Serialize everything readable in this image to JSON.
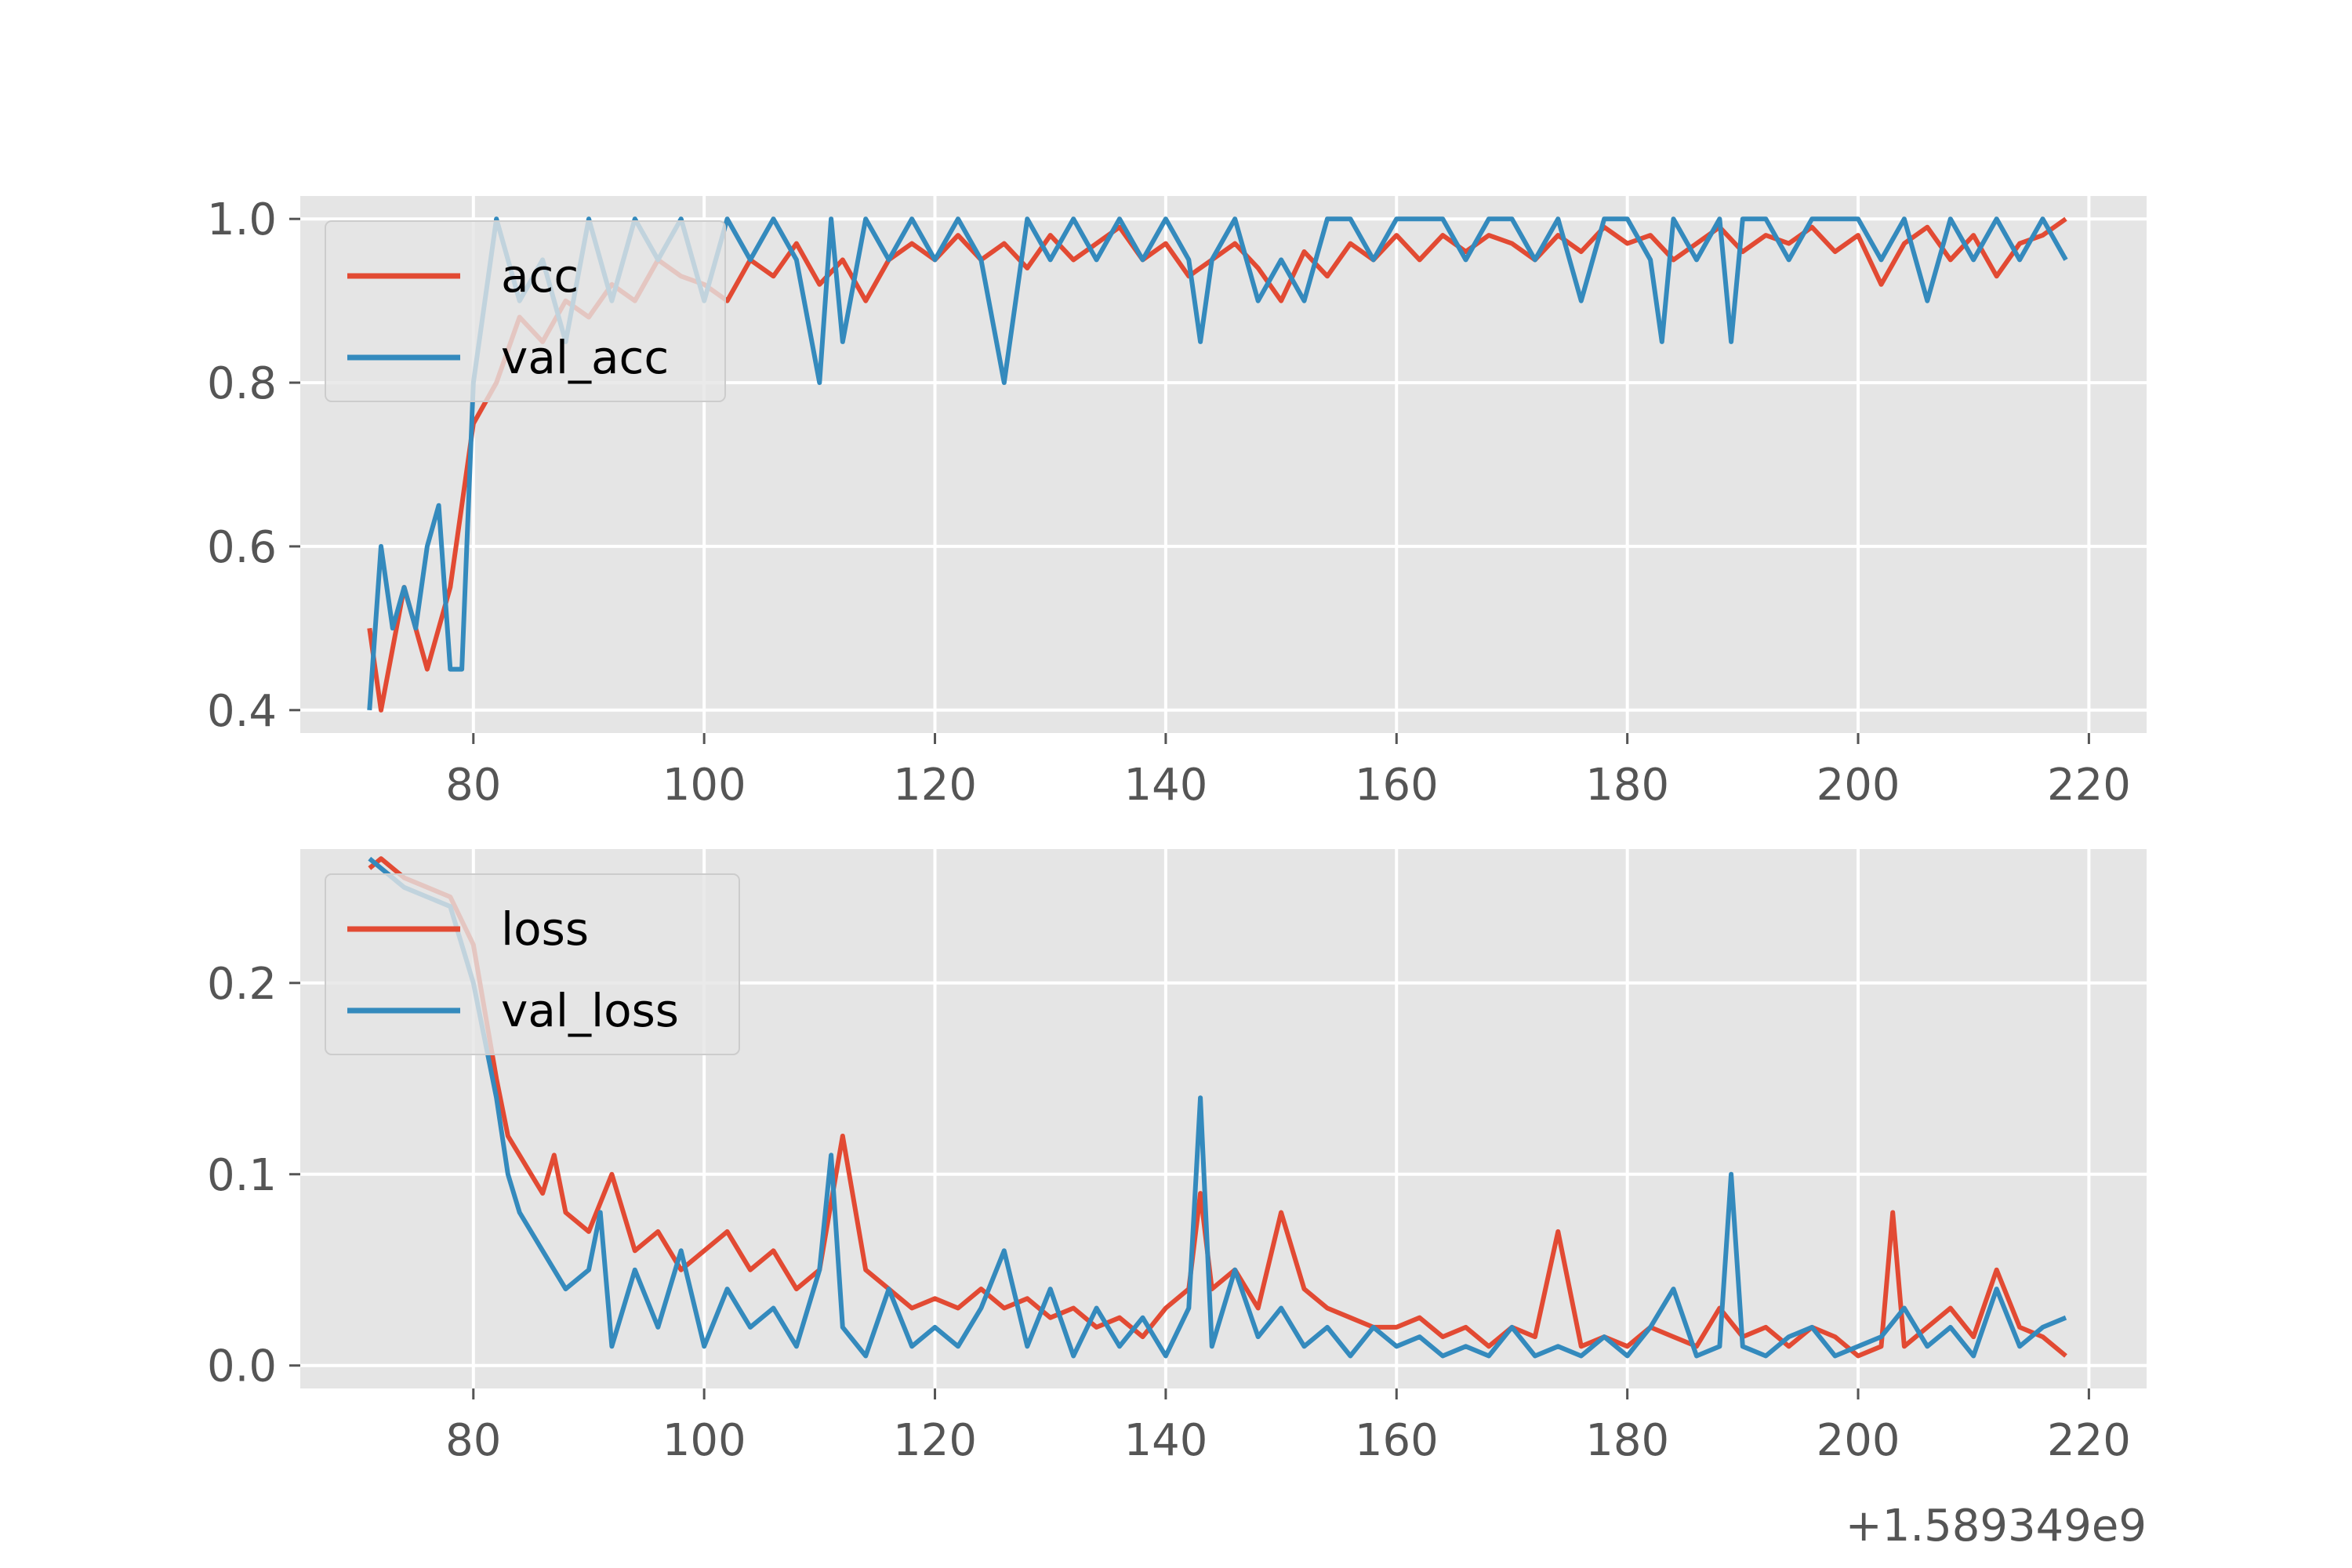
{
  "chart_data": [
    {
      "type": "line",
      "x_offset_text": "+1.589349e9",
      "xlim": [
        65,
        225
      ],
      "ylim": [
        0.372,
        1.028
      ],
      "xticks": [
        80,
        100,
        120,
        140,
        160,
        180,
        200,
        220
      ],
      "yticks": [
        0.4,
        0.6,
        0.8,
        1.0
      ],
      "ytick_labels": [
        "0.4",
        "0.6",
        "0.8",
        "1.0"
      ],
      "grid": true,
      "legend_position": "top-left",
      "series": [
        {
          "name": "acc",
          "color": "#E24A33",
          "x": [
            71,
            72,
            74,
            76,
            78,
            80,
            82,
            84,
            86,
            88,
            90,
            92,
            94,
            96,
            98,
            100,
            102,
            104,
            106,
            108,
            110,
            112,
            114,
            116,
            118,
            120,
            122,
            124,
            126,
            128,
            130,
            132,
            134,
            136,
            138,
            140,
            142,
            144,
            146,
            148,
            150,
            152,
            154,
            156,
            158,
            160,
            162,
            164,
            166,
            168,
            170,
            172,
            174,
            176,
            178,
            180,
            182,
            184,
            186,
            188,
            190,
            192,
            194,
            196,
            198,
            200,
            202,
            204,
            206,
            208,
            210,
            212,
            214,
            216,
            218
          ],
          "y": [
            0.5,
            0.4,
            0.55,
            0.45,
            0.55,
            0.75,
            0.8,
            0.88,
            0.85,
            0.9,
            0.88,
            0.92,
            0.9,
            0.95,
            0.93,
            0.92,
            0.9,
            0.95,
            0.93,
            0.97,
            0.92,
            0.95,
            0.9,
            0.95,
            0.97,
            0.95,
            0.98,
            0.95,
            0.97,
            0.94,
            0.98,
            0.95,
            0.97,
            0.99,
            0.95,
            0.97,
            0.93,
            0.95,
            0.97,
            0.94,
            0.9,
            0.96,
            0.93,
            0.97,
            0.95,
            0.98,
            0.95,
            0.98,
            0.96,
            0.98,
            0.97,
            0.95,
            0.98,
            0.96,
            0.99,
            0.97,
            0.98,
            0.95,
            0.97,
            0.99,
            0.96,
            0.98,
            0.97,
            0.99,
            0.96,
            0.98,
            0.92,
            0.97,
            0.99,
            0.95,
            0.98,
            0.93,
            0.97,
            0.98,
            1.0
          ]
        },
        {
          "name": "val_acc",
          "color": "#348ABD",
          "x": [
            71,
            72,
            73,
            74,
            75,
            76,
            77,
            78,
            79,
            80,
            81,
            82,
            84,
            86,
            88,
            90,
            92,
            94,
            96,
            98,
            100,
            102,
            104,
            106,
            108,
            110,
            111,
            112,
            114,
            116,
            118,
            120,
            122,
            124,
            126,
            128,
            130,
            132,
            134,
            136,
            138,
            140,
            142,
            143,
            144,
            146,
            148,
            150,
            152,
            154,
            156,
            158,
            160,
            162,
            164,
            166,
            168,
            170,
            172,
            174,
            176,
            178,
            180,
            182,
            183,
            184,
            186,
            188,
            189,
            190,
            192,
            194,
            196,
            198,
            200,
            202,
            204,
            206,
            208,
            210,
            212,
            214,
            216,
            218
          ],
          "y": [
            0.4,
            0.6,
            0.5,
            0.55,
            0.5,
            0.6,
            0.65,
            0.45,
            0.45,
            0.8,
            0.9,
            1.0,
            0.9,
            0.95,
            0.85,
            1.0,
            0.9,
            1.0,
            0.95,
            1.0,
            0.9,
            1.0,
            0.95,
            1.0,
            0.95,
            0.8,
            1.0,
            0.85,
            1.0,
            0.95,
            1.0,
            0.95,
            1.0,
            0.95,
            0.8,
            1.0,
            0.95,
            1.0,
            0.95,
            1.0,
            0.95,
            1.0,
            0.95,
            0.85,
            0.95,
            1.0,
            0.9,
            0.95,
            0.9,
            1.0,
            1.0,
            0.95,
            1.0,
            1.0,
            1.0,
            0.95,
            1.0,
            1.0,
            0.95,
            1.0,
            0.9,
            1.0,
            1.0,
            0.95,
            0.85,
            1.0,
            0.95,
            1.0,
            0.85,
            1.0,
            1.0,
            0.95,
            1.0,
            1.0,
            1.0,
            0.95,
            1.0,
            0.9,
            1.0,
            0.95,
            1.0,
            0.95,
            1.0,
            0.95
          ]
        }
      ]
    },
    {
      "type": "line",
      "x_offset_text": "+1.589349e9",
      "xlim": [
        65,
        225
      ],
      "ylim": [
        -0.012,
        0.27
      ],
      "xticks": [
        80,
        100,
        120,
        140,
        160,
        180,
        200,
        220
      ],
      "yticks": [
        0.0,
        0.1,
        0.2
      ],
      "ytick_labels": [
        "0.0",
        "0.1",
        "0.2"
      ],
      "grid": true,
      "legend_position": "top-left",
      "series": [
        {
          "name": "loss",
          "color": "#E24A33",
          "x": [
            71,
            72,
            74,
            76,
            78,
            80,
            82,
            83,
            84,
            85,
            86,
            87,
            88,
            90,
            92,
            94,
            96,
            98,
            100,
            102,
            104,
            106,
            108,
            110,
            112,
            114,
            116,
            118,
            120,
            122,
            124,
            126,
            128,
            130,
            132,
            134,
            136,
            138,
            140,
            142,
            143,
            144,
            146,
            148,
            150,
            152,
            154,
            156,
            158,
            160,
            162,
            164,
            166,
            168,
            170,
            172,
            174,
            176,
            178,
            180,
            182,
            184,
            186,
            188,
            190,
            192,
            194,
            196,
            198,
            200,
            202,
            203,
            204,
            206,
            208,
            210,
            212,
            214,
            216,
            218
          ],
          "y": [
            0.26,
            0.265,
            0.255,
            0.25,
            0.245,
            0.22,
            0.15,
            0.12,
            0.11,
            0.1,
            0.09,
            0.11,
            0.08,
            0.07,
            0.1,
            0.06,
            0.07,
            0.05,
            0.06,
            0.07,
            0.05,
            0.06,
            0.04,
            0.05,
            0.12,
            0.05,
            0.04,
            0.03,
            0.035,
            0.03,
            0.04,
            0.03,
            0.035,
            0.025,
            0.03,
            0.02,
            0.025,
            0.015,
            0.03,
            0.04,
            0.09,
            0.04,
            0.05,
            0.03,
            0.08,
            0.04,
            0.03,
            0.025,
            0.02,
            0.02,
            0.025,
            0.015,
            0.02,
            0.01,
            0.02,
            0.015,
            0.07,
            0.01,
            0.015,
            0.01,
            0.02,
            0.015,
            0.01,
            0.03,
            0.015,
            0.02,
            0.01,
            0.02,
            0.015,
            0.005,
            0.01,
            0.08,
            0.01,
            0.02,
            0.03,
            0.015,
            0.05,
            0.02,
            0.015,
            0.005
          ]
        },
        {
          "name": "val_loss",
          "color": "#348ABD",
          "x": [
            71,
            72,
            74,
            76,
            78,
            80,
            82,
            83,
            84,
            86,
            88,
            90,
            91,
            92,
            94,
            96,
            98,
            100,
            102,
            104,
            106,
            108,
            110,
            111,
            112,
            114,
            116,
            118,
            120,
            122,
            124,
            126,
            128,
            130,
            132,
            134,
            136,
            138,
            140,
            142,
            143,
            144,
            146,
            148,
            150,
            152,
            154,
            156,
            158,
            160,
            162,
            164,
            166,
            168,
            170,
            172,
            174,
            176,
            178,
            180,
            182,
            184,
            186,
            188,
            189,
            190,
            192,
            194,
            196,
            198,
            200,
            202,
            204,
            206,
            208,
            210,
            212,
            214,
            216,
            218
          ],
          "y": [
            0.265,
            0.26,
            0.25,
            0.245,
            0.24,
            0.2,
            0.14,
            0.1,
            0.08,
            0.06,
            0.04,
            0.05,
            0.08,
            0.01,
            0.05,
            0.02,
            0.06,
            0.01,
            0.04,
            0.02,
            0.03,
            0.01,
            0.05,
            0.11,
            0.02,
            0.005,
            0.04,
            0.01,
            0.02,
            0.01,
            0.03,
            0.06,
            0.01,
            0.04,
            0.005,
            0.03,
            0.01,
            0.025,
            0.005,
            0.03,
            0.14,
            0.01,
            0.05,
            0.015,
            0.03,
            0.01,
            0.02,
            0.005,
            0.02,
            0.01,
            0.015,
            0.005,
            0.01,
            0.005,
            0.02,
            0.005,
            0.01,
            0.005,
            0.015,
            0.005,
            0.02,
            0.04,
            0.005,
            0.01,
            0.1,
            0.01,
            0.005,
            0.015,
            0.02,
            0.005,
            0.01,
            0.015,
            0.03,
            0.01,
            0.02,
            0.005,
            0.04,
            0.01,
            0.02,
            0.025
          ]
        }
      ]
    }
  ]
}
